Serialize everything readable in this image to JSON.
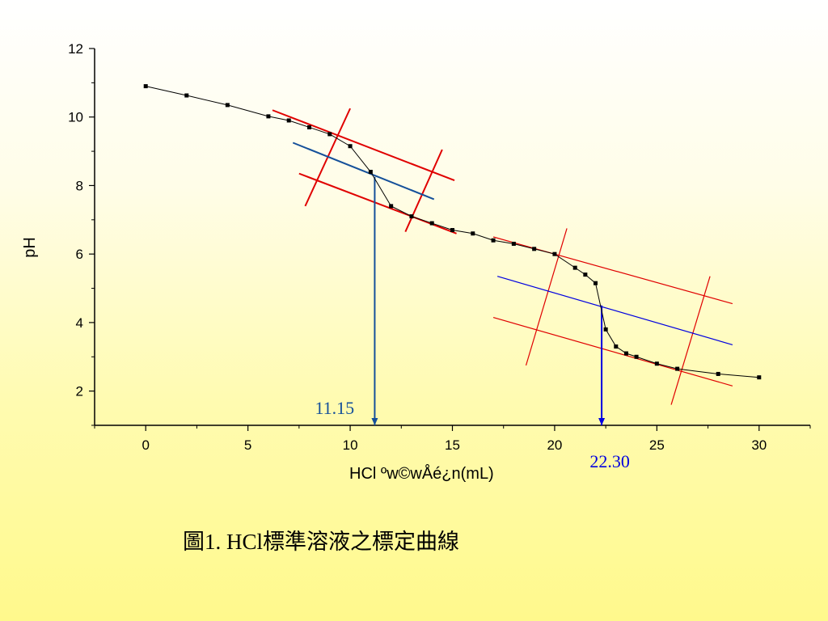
{
  "caption": "圖1. HCl標準溶液之標定曲線",
  "chart_data": {
    "type": "line",
    "xlabel": "HCl ºw©wÅé¿n(mL)",
    "ylabel": "pH",
    "xlim": [
      -2.5,
      32.5
    ],
    "ylim": [
      1,
      12
    ],
    "xticks": [
      0,
      5,
      10,
      15,
      20,
      25,
      30
    ],
    "yticks": [
      2,
      4,
      6,
      8,
      10,
      12
    ],
    "grid": false,
    "series": [
      {
        "color": "#000000",
        "x": [
          0,
          2,
          4,
          6,
          7,
          8,
          9,
          10,
          11,
          12,
          13,
          14,
          15,
          16,
          17,
          18,
          19,
          20,
          21,
          21.5,
          22,
          22.5,
          23,
          23.5,
          24,
          25,
          26,
          28,
          30
        ],
        "y": [
          10.9,
          10.63,
          10.35,
          10.02,
          9.9,
          9.7,
          9.5,
          9.15,
          8.4,
          7.4,
          7.1,
          6.9,
          6.7,
          6.6,
          6.4,
          6.3,
          6.15,
          6.0,
          5.6,
          5.4,
          5.15,
          3.8,
          3.3,
          3.1,
          3.0,
          2.8,
          2.65,
          2.5,
          2.4
        ]
      }
    ],
    "construction_lines": [
      {
        "color": "#e00000",
        "x": [
          6.2,
          15.1
        ],
        "y": [
          10.2,
          8.15
        ]
      },
      {
        "color": "#e00000",
        "x": [
          7.5,
          15.2
        ],
        "y": [
          8.35,
          6.6
        ]
      },
      {
        "color": "#e00000",
        "x": [
          10.0,
          7.8
        ],
        "y": [
          10.25,
          7.4
        ]
      },
      {
        "color": "#e00000",
        "x": [
          14.5,
          12.7
        ],
        "y": [
          9.05,
          6.65
        ]
      },
      {
        "color": "#15509a",
        "x": [
          7.2,
          14.1
        ],
        "y": [
          9.25,
          7.6
        ]
      },
      {
        "color": "#15509a",
        "x": [
          11.2,
          11.2
        ],
        "y": [
          8.25,
          1.0
        ]
      },
      {
        "color": "#e00000",
        "x": [
          17.0,
          28.7
        ],
        "y": [
          6.5,
          4.55
        ]
      },
      {
        "color": "#e00000",
        "x": [
          17.0,
          28.7
        ],
        "y": [
          4.15,
          2.15
        ]
      },
      {
        "color": "#e00000",
        "x": [
          20.6,
          18.6
        ],
        "y": [
          6.75,
          2.75
        ]
      },
      {
        "color": "#e00000",
        "x": [
          27.6,
          25.7
        ],
        "y": [
          5.35,
          1.6
        ]
      },
      {
        "color": "#0000e0",
        "x": [
          17.2,
          28.7
        ],
        "y": [
          5.35,
          3.35
        ]
      },
      {
        "color": "#0000e0",
        "x": [
          22.3,
          22.3
        ],
        "y": [
          4.5,
          1.0
        ]
      }
    ],
    "annotations": [
      {
        "text": "11.15",
        "x": 11.15,
        "color": "#15509a",
        "position": "left-of-arrow"
      },
      {
        "text": "22.30",
        "x": 22.3,
        "color": "#0000e0",
        "position": "below-arrow"
      }
    ]
  }
}
